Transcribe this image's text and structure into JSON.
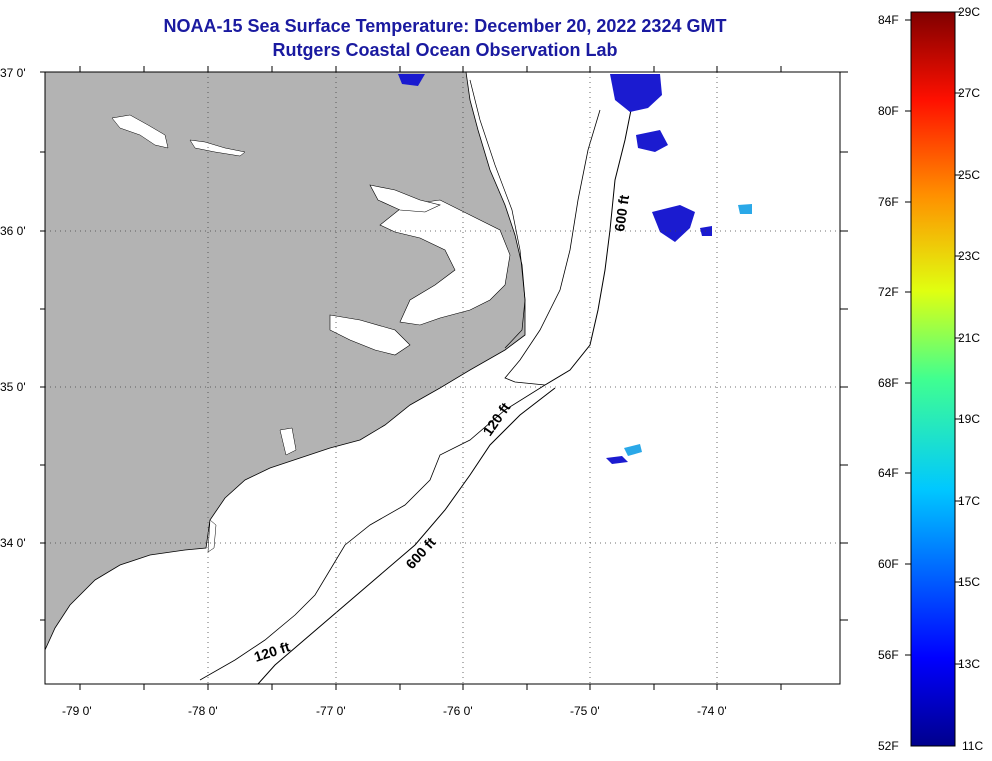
{
  "title": {
    "line1": "NOAA-15 Sea Surface Temperature:  December 20, 2022 2324 GMT",
    "line2": "Rutgers Coastal Ocean Observation Lab"
  },
  "map": {
    "lat_labels": [
      "37 0'",
      "36 0'",
      "35 0'",
      "34 0'"
    ],
    "lon_labels": [
      "-79 0'",
      "-78 0'",
      "-77 0'",
      "-76 0'",
      "-75 0'",
      "-74 0'"
    ],
    "contour_labels": [
      "600 ft",
      "120 ft",
      "600 ft",
      "120 ft"
    ],
    "colors": {
      "land": "#b3b3b3",
      "cloud": "#ffffff",
      "cold_sst": "#1b1bd0"
    }
  },
  "colorbar": {
    "fahrenheit": [
      "84F",
      "80F",
      "76F",
      "72F",
      "68F",
      "64F",
      "60F",
      "56F",
      "52F"
    ],
    "celsius": [
      "29C",
      "27C",
      "25C",
      "23C",
      "21C",
      "19C",
      "17C",
      "15C",
      "13C",
      "11C"
    ]
  }
}
